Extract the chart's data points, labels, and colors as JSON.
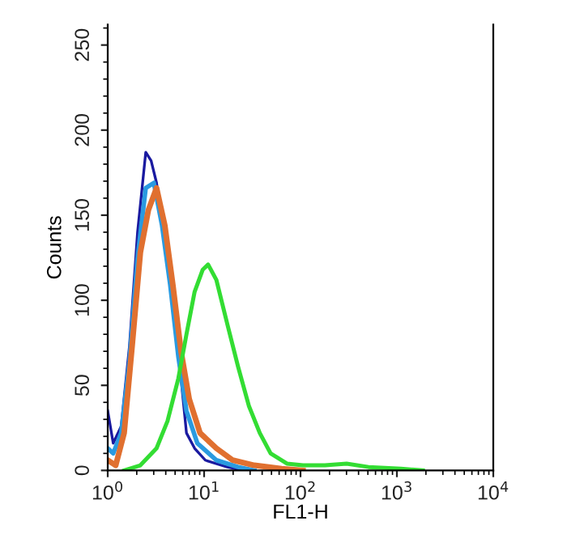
{
  "chart_data": {
    "type": "line",
    "xlabel": "FL1-H",
    "ylabel": "Counts",
    "log": "x",
    "xlim": [
      1,
      10000
    ],
    "ylim": [
      0,
      262
    ],
    "xticks": [
      {
        "value": 1,
        "label": "10$^{0}$"
      },
      {
        "value": 10,
        "label": "10$^{1}$"
      },
      {
        "value": 100,
        "label": "10$^{2}$"
      },
      {
        "value": 1000,
        "label": "10$^{3}$"
      },
      {
        "value": 10000,
        "label": "10$^{4}$"
      }
    ],
    "yticks": [
      0,
      50,
      100,
      150,
      200,
      250
    ],
    "grid": false,
    "legend": false,
    "marker": "none",
    "line_style": "solid",
    "series": [
      {
        "color": "#1a1aa0",
        "x": [
          1.0,
          1.14,
          1.38,
          1.68,
          2.04,
          2.48,
          2.82,
          3.21,
          3.91,
          4.74,
          5.76,
          6.56,
          7.97,
          10.3,
          17.4,
          25.6
        ],
        "values": [
          35,
          16,
          26,
          73,
          140,
          187,
          182,
          169,
          134,
          99,
          54,
          22,
          13,
          6,
          2,
          0
        ]
      },
      {
        "color": "#2a9ae0",
        "x": [
          1.0,
          1.14,
          1.38,
          1.68,
          2.04,
          2.48,
          3.01,
          3.66,
          4.45,
          5.4,
          6.56,
          8.5,
          13.4,
          22.5,
          33.2
        ],
        "values": [
          13,
          10,
          22,
          64,
          125,
          166,
          169,
          144,
          109,
          67,
          35,
          16,
          6,
          2,
          0
        ]
      },
      {
        "color": "#e07030",
        "x": [
          1.0,
          1.21,
          1.48,
          1.79,
          2.18,
          2.64,
          3.21,
          3.91,
          4.74,
          5.76,
          7.0,
          9.07,
          13.4,
          19.8,
          33.2,
          63.6,
          106
        ],
        "values": [
          6,
          3,
          22,
          73,
          128,
          153,
          166,
          144,
          109,
          70,
          42,
          22,
          13,
          6,
          3,
          1,
          0
        ]
      },
      {
        "color": "#33dd33",
        "x": [
          1.48,
          2.18,
          3.21,
          4.17,
          5.4,
          6.56,
          7.97,
          9.68,
          11.0,
          13.4,
          17.4,
          22.5,
          29.1,
          37.8,
          49.0,
          72.3,
          106,
          179,
          301,
          507,
          1100,
          1860
        ],
        "values": [
          0,
          3,
          13,
          29,
          54,
          80,
          105,
          118,
          121,
          112,
          86,
          61,
          38,
          22,
          10,
          4,
          3,
          3,
          4,
          2,
          1,
          0
        ]
      }
    ]
  }
}
